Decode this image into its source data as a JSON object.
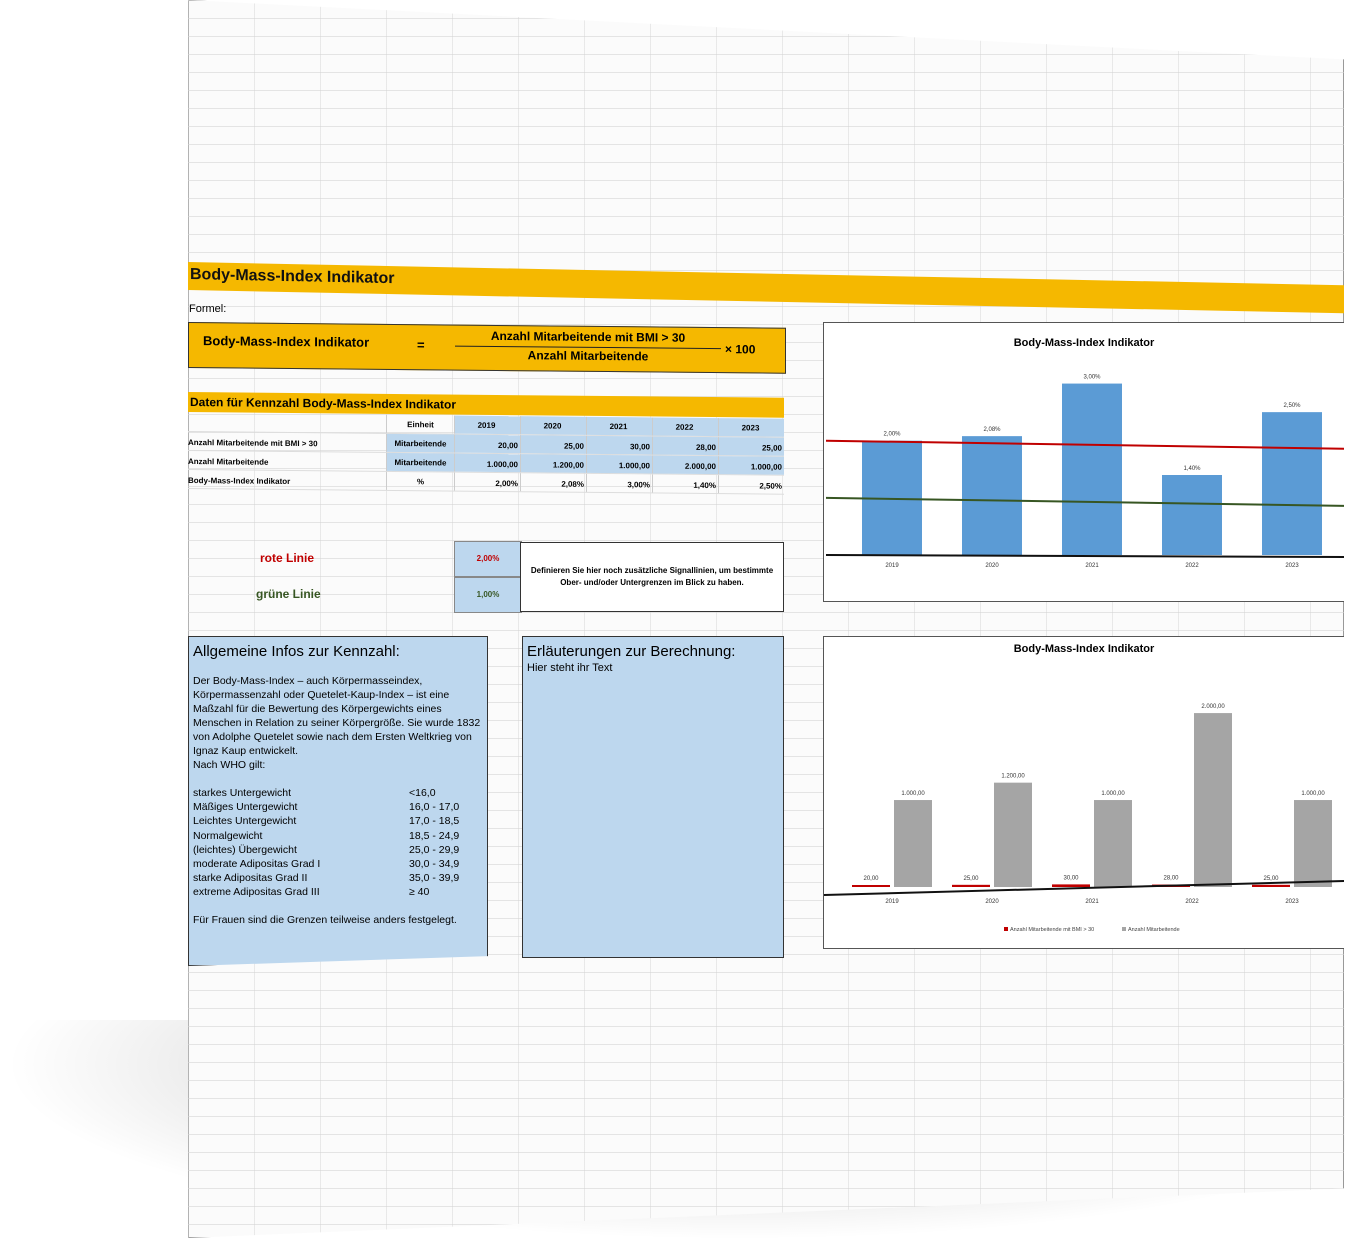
{
  "title": "Body-Mass-Index Indikator",
  "formula_label": "Formel:",
  "formula": {
    "name": "Body-Mass-Index Indikator",
    "equals": "=",
    "numerator": "Anzahl Mitarbeitende mit BMI > 30",
    "denominator": "Anzahl Mitarbeitende",
    "multiplier": "× 100"
  },
  "data_section": {
    "title": "Daten für Kennzahl Body-Mass-Index Indikator",
    "unit_header": "Einheit",
    "years": [
      "2019",
      "2020",
      "2021",
      "2022",
      "2023"
    ],
    "rows": [
      {
        "label": "Anzahl Mitarbeitende mit BMI > 30",
        "unit": "Mitarbeitende",
        "values": [
          "20,00",
          "25,00",
          "30,00",
          "28,00",
          "25,00"
        ]
      },
      {
        "label": "Anzahl Mitarbeitende",
        "unit": "Mitarbeitende",
        "values": [
          "1.000,00",
          "1.200,00",
          "1.000,00",
          "2.000,00",
          "1.000,00"
        ]
      },
      {
        "label": "Body-Mass-Index Indikator",
        "unit": "%",
        "values": [
          "2,00%",
          "2,08%",
          "3,00%",
          "1,40%",
          "2,50%"
        ]
      }
    ]
  },
  "signals": {
    "red_label": "rote Linie",
    "red_value": "2,00%",
    "green_label": "grüne Linie",
    "green_value": "1,00%",
    "hint": "Definieren Sie hier noch zusätzliche Signallinien, um bestimmte Ober- und/oder Untergrenzen im Blick zu haben.",
    "red_color": "#c00000",
    "green_color": "#375623"
  },
  "info": {
    "heading": "Allgemeine Infos zur Kennzahl:",
    "text": "Der Body-Mass-Index – auch Körpermasseindex, Körpermassenzahl oder Quetelet-Kaup-Index – ist eine Maßzahl für die Bewertung des Körpergewichts eines Menschen in Relation zu seiner Körpergröße. Sie wurde 1832 von Adolphe Quetelet sowie nach dem Ersten Weltkrieg von Ignaz Kaup entwickelt.",
    "who_intro": "Nach WHO gilt:",
    "categories": [
      {
        "name": "starkes Untergewicht",
        "range": "<16,0"
      },
      {
        "name": "Mäßiges Untergewicht",
        "range": "16,0 - 17,0"
      },
      {
        "name": "Leichtes Untergewicht",
        "range": "17,0 - 18,5"
      },
      {
        "name": "Normalgewicht",
        "range": "18,5 - 24,9"
      },
      {
        "name": "(leichtes) Übergewicht",
        "range": "25,0 - 29,9"
      },
      {
        "name": "moderate Adipositas Grad I",
        "range": "30,0 - 34,9"
      },
      {
        "name": "starke Adipositas Grad II",
        "range": "35,0 - 39,9"
      },
      {
        "name": "extreme Adipositas Grad III",
        "range": "≥ 40"
      }
    ],
    "footnote": "Für Frauen sind die Grenzen teilweise anders festgelegt."
  },
  "explanation": {
    "heading": "Erläuterungen zur Berechnung:",
    "text": "Hier steht ihr Text"
  },
  "chart_data": [
    {
      "type": "bar",
      "title": "Body-Mass-Index Indikator",
      "categories": [
        "2019",
        "2020",
        "2021",
        "2022",
        "2023"
      ],
      "values": [
        2.0,
        2.08,
        3.0,
        1.4,
        2.5
      ],
      "labels": [
        "2,00%",
        "2,08%",
        "3,00%",
        "1,40%",
        "2,50%"
      ],
      "reference_lines": [
        {
          "value": 2.0,
          "color": "#c00000"
        },
        {
          "value": 1.0,
          "color": "#375623"
        }
      ],
      "bar_color": "#5b9bd5"
    },
    {
      "type": "bar",
      "title": "Body-Mass-Index Indikator",
      "categories": [
        "2019",
        "2020",
        "2021",
        "2022",
        "2023"
      ],
      "series": [
        {
          "name": "Anzahl Mitarbeitende mit BMI > 30",
          "values": [
            20,
            25,
            30,
            28,
            25
          ],
          "labels": [
            "20,00",
            "25,00",
            "30,00",
            "28,00",
            "25,00"
          ],
          "color": "#c00000"
        },
        {
          "name": "Anzahl Mitarbeitende",
          "values": [
            1000,
            1200,
            1000,
            2000,
            1000
          ],
          "labels": [
            "1.000,00",
            "1.200,00",
            "1.000,00",
            "2.000,00",
            "1.000,00"
          ],
          "color": "#a5a5a5"
        }
      ],
      "legend": "bottom"
    }
  ]
}
